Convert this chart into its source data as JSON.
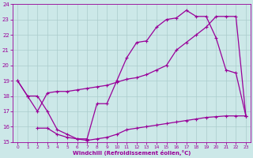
{
  "xlabel": "Windchill (Refroidissement éolien,°C)",
  "xlim": [
    -0.5,
    23.5
  ],
  "ylim": [
    15,
    24
  ],
  "xticks": [
    0,
    1,
    2,
    3,
    4,
    5,
    6,
    7,
    8,
    9,
    10,
    11,
    12,
    13,
    14,
    15,
    16,
    17,
    18,
    19,
    20,
    21,
    22,
    23
  ],
  "yticks": [
    15,
    16,
    17,
    18,
    19,
    20,
    21,
    22,
    23,
    24
  ],
  "bg_color": "#cce8e8",
  "line_color": "#990099",
  "grid_color": "#aacccc",
  "line1_x": [
    0,
    1,
    2,
    3,
    4,
    5,
    6,
    7,
    8,
    9,
    10,
    11,
    12,
    13,
    14,
    15,
    16,
    17,
    18,
    19,
    20,
    21,
    22,
    23
  ],
  "line1_y": [
    19,
    18,
    18,
    17,
    15.8,
    15.5,
    15.2,
    15.2,
    17.5,
    17.5,
    19.0,
    20.5,
    21.5,
    21.6,
    22.5,
    23.0,
    23.1,
    23.6,
    23.2,
    23.2,
    21.8,
    19.7,
    19.5,
    16.7
  ],
  "line2_x": [
    0,
    1,
    2,
    3,
    4,
    5,
    6,
    7,
    8,
    9,
    10,
    11,
    12,
    13,
    14,
    15,
    16,
    17,
    18,
    19,
    20,
    21,
    22,
    23
  ],
  "line2_y": [
    19,
    18,
    17,
    18.2,
    18.3,
    18.3,
    18.4,
    18.5,
    18.6,
    18.7,
    18.9,
    19.1,
    19.2,
    19.4,
    19.7,
    20.0,
    21.0,
    21.5,
    22.0,
    22.5,
    23.2,
    23.2,
    23.2,
    16.7
  ],
  "line3_x": [
    2,
    3,
    4,
    5,
    6,
    7,
    8,
    9,
    10,
    11,
    12,
    13,
    14,
    15,
    16,
    17,
    18,
    19,
    20,
    21,
    22,
    23
  ],
  "line3_y": [
    15.9,
    15.9,
    15.5,
    15.3,
    15.2,
    15.1,
    15.2,
    15.3,
    15.5,
    15.8,
    15.9,
    16.0,
    16.1,
    16.2,
    16.3,
    16.4,
    16.5,
    16.6,
    16.65,
    16.7,
    16.7,
    16.7
  ]
}
